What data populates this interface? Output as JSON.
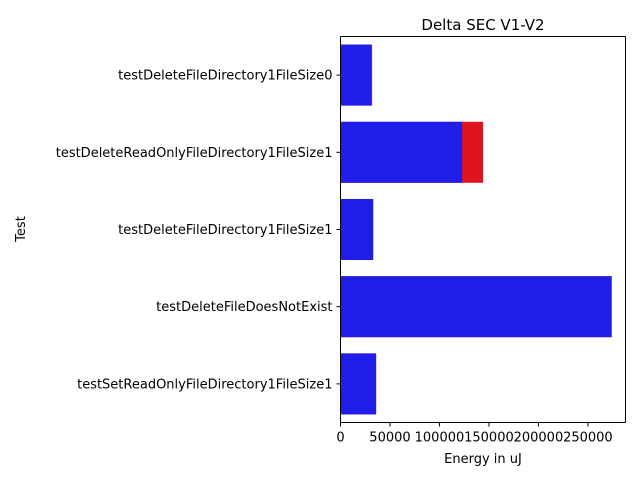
{
  "chart_data": {
    "type": "bar",
    "orientation": "horizontal",
    "title": "Delta SEC V1-V2",
    "xlabel": "Energy in uJ",
    "ylabel": "Test",
    "categories": [
      "testDeleteFileDirectory1FileSize0",
      "testDeleteReadOnlyFileDirectory1FileSize1",
      "testDeleteFileDirectory1FileSize1",
      "testDeleteFileDoesNotExist",
      "testSetReadOnlyFileDirectory1FileSize1"
    ],
    "series": [
      {
        "color": "#e0141e",
        "values": [
          32000,
          144000,
          33000,
          274000,
          36000
        ]
      },
      {
        "color": "#1e1ee8",
        "values": [
          31000,
          123000,
          33000,
          274000,
          36000
        ]
      }
    ],
    "xlim": [
      0,
      288000
    ],
    "xticks": [
      0,
      50000,
      100000,
      150000,
      200000,
      250000
    ],
    "xtick_labels": [
      "0",
      "50000",
      "100000",
      "150000",
      "200000",
      "250000"
    ],
    "grid": false,
    "legend": "none"
  }
}
